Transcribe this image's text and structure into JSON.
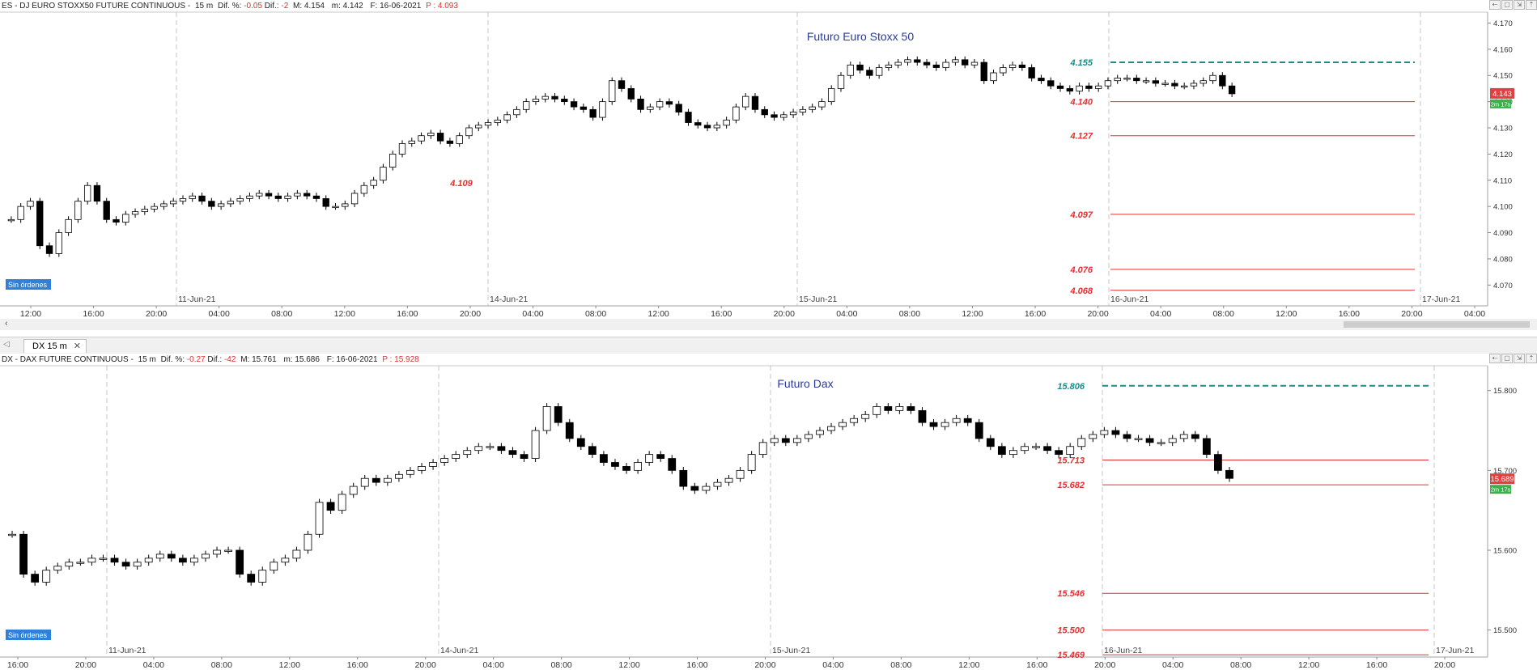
{
  "colors": {
    "support": "#e03030",
    "resistance": "#1f8a8a",
    "title": "#2a3a9a",
    "badge_bg": "#2f80d8",
    "axis_text": "#333333",
    "grid": "#d8d8d8",
    "last_badge": "#e04040",
    "timer_badge": "#3bb04b"
  },
  "top_panel": {
    "info": {
      "symbol": "ES - DJ EURO STOXX50 FUTURE CONTINUOUS -",
      "tf": "15 m",
      "dif_pct_label": "Dif. %:",
      "dif_pct": "-0.05",
      "dif_label": "Dif.:",
      "dif": "-2",
      "max": "M: 4.154",
      "min": "m: 4.142",
      "date": "F: 16-06-2021",
      "price": "P : 4.093"
    },
    "orders_badge": "Sin órdenes",
    "toolbar": [
      "⇠",
      "▢",
      "⇲",
      "⇡"
    ],
    "scroll_left": "‹"
  },
  "bottom_panel": {
    "info": {
      "symbol": "DX - DAX FUTURE CONTINUOUS -",
      "tf": "15 m",
      "dif_pct_label": "Dif. %:",
      "dif_pct": "-0.27",
      "dif_label": "Dif.:",
      "dif": "-42",
      "max": "M: 15.761",
      "min": "m: 15.686",
      "date": "F: 16-06-2021",
      "price": "P : 15.928"
    },
    "orders_badge": "Sin órdenes",
    "toolbar": [
      "⇠",
      "▢",
      "⇲",
      "⇡"
    ]
  },
  "tab": {
    "label": "DX 15 m",
    "close": "✕",
    "arrow": "◁"
  },
  "chart_data": [
    {
      "type": "candlestick",
      "title": "Futuro Euro Stoxx 50",
      "ylim": [
        4.067,
        4.172
      ],
      "y_ticks": [
        "4.170",
        "4.160",
        "4.150",
        "4.140",
        "4.130",
        "4.120",
        "4.110",
        "4.100",
        "4.090",
        "4.080",
        "4.070"
      ],
      "x_time_labels": [
        "12:00",
        "16:00",
        "20:00",
        "04:00",
        "08:00",
        "12:00",
        "16:00",
        "20:00",
        "04:00",
        "08:00",
        "12:00",
        "16:00",
        "20:00",
        "04:00",
        "08:00",
        "12:00",
        "16:00",
        "20:00",
        "04:00",
        "08:00",
        "12:00",
        "16:00",
        "20:00",
        "04:00"
      ],
      "date_labels": [
        "11-Jun-21",
        "14-Jun-21",
        "15-Jun-21",
        "16-Jun-21",
        "17-Jun-21"
      ],
      "last_price": "4.143",
      "timer": "2m 17s",
      "resistance": {
        "value": 4.155,
        "label": "4.155"
      },
      "supports": [
        {
          "value": 4.14,
          "label": "4.140"
        },
        {
          "value": 4.127,
          "label": "4.127"
        },
        {
          "value": 4.097,
          "label": "4.097"
        },
        {
          "value": 4.076,
          "label": "4.076"
        },
        {
          "value": 4.068,
          "label": "4.068"
        }
      ],
      "annotations": [
        {
          "value": 4.109,
          "label": "4.109"
        }
      ],
      "closes": [
        4.095,
        4.1,
        4.102,
        4.085,
        4.082,
        4.09,
        4.095,
        4.102,
        4.108,
        4.102,
        4.095,
        4.094,
        4.097,
        4.098,
        4.099,
        4.1,
        4.101,
        4.102,
        4.103,
        4.104,
        4.102,
        4.1,
        4.101,
        4.102,
        4.103,
        4.104,
        4.105,
        4.104,
        4.103,
        4.104,
        4.105,
        4.104,
        4.103,
        4.1,
        4.1,
        4.101,
        4.105,
        4.108,
        4.11,
        4.115,
        4.12,
        4.124,
        4.125,
        4.127,
        4.128,
        4.125,
        4.124,
        4.127,
        4.13,
        4.131,
        4.132,
        4.133,
        4.135,
        4.137,
        4.14,
        4.141,
        4.142,
        4.141,
        4.14,
        4.138,
        4.137,
        4.134,
        4.14,
        4.148,
        4.145,
        4.141,
        4.137,
        4.138,
        4.14,
        4.139,
        4.136,
        4.132,
        4.131,
        4.13,
        4.131,
        4.133,
        4.138,
        4.142,
        4.137,
        4.135,
        4.134,
        4.135,
        4.136,
        4.137,
        4.138,
        4.14,
        4.145,
        4.15,
        4.154,
        4.152,
        4.15,
        4.153,
        4.154,
        4.155,
        4.156,
        4.155,
        4.154,
        4.153,
        4.155,
        4.156,
        4.154,
        4.155,
        4.148,
        4.151,
        4.153,
        4.154,
        4.153,
        4.149,
        4.148,
        4.146,
        4.145,
        4.144,
        4.146,
        4.145,
        4.146,
        4.148,
        4.149,
        4.149,
        4.148,
        4.148,
        4.147,
        4.147,
        4.146,
        4.146,
        4.147,
        4.148,
        4.15,
        4.146,
        4.143
      ]
    },
    {
      "type": "candlestick",
      "title": "Futuro Dax",
      "ylim": [
        15.455,
        15.82
      ],
      "y_ticks": [
        "15.800",
        "15.700",
        "15.600",
        "15.500"
      ],
      "x_time_labels": [
        "16:00",
        "20:00",
        "04:00",
        "08:00",
        "12:00",
        "16:00",
        "20:00",
        "04:00",
        "08:00",
        "12:00",
        "16:00",
        "20:00",
        "04:00",
        "08:00",
        "12:00",
        "16:00",
        "20:00",
        "04:00",
        "08:00",
        "12:00",
        "16:00",
        "20:00"
      ],
      "date_labels": [
        "11-Jun-21",
        "14-Jun-21",
        "15-Jun-21",
        "16-Jun-21",
        "17-Jun-21"
      ],
      "last_price": "15.689",
      "timer": "2m 17s",
      "resistance": {
        "value": 15.806,
        "label": "15.806"
      },
      "supports": [
        {
          "value": 15.713,
          "label": "15.713"
        },
        {
          "value": 15.682,
          "label": "15.682"
        },
        {
          "value": 15.546,
          "label": "15.546"
        },
        {
          "value": 15.5,
          "label": "15.500"
        },
        {
          "value": 15.469,
          "label": "15.469"
        }
      ],
      "annotations": [],
      "closes": [
        15.62,
        15.57,
        15.56,
        15.575,
        15.58,
        15.585,
        15.585,
        15.59,
        15.59,
        15.585,
        15.58,
        15.585,
        15.59,
        15.595,
        15.59,
        15.585,
        15.59,
        15.595,
        15.6,
        15.6,
        15.57,
        15.56,
        15.575,
        15.585,
        15.59,
        15.6,
        15.62,
        15.66,
        15.65,
        15.67,
        15.68,
        15.69,
        15.685,
        15.69,
        15.695,
        15.7,
        15.705,
        15.71,
        15.715,
        15.72,
        15.725,
        15.73,
        15.73,
        15.725,
        15.72,
        15.715,
        15.75,
        15.78,
        15.76,
        15.74,
        15.73,
        15.72,
        15.71,
        15.705,
        15.7,
        15.71,
        15.72,
        15.715,
        15.7,
        15.68,
        15.675,
        15.68,
        15.685,
        15.69,
        15.7,
        15.72,
        15.735,
        15.74,
        15.735,
        15.74,
        15.745,
        15.75,
        15.755,
        15.76,
        15.765,
        15.77,
        15.78,
        15.775,
        15.78,
        15.775,
        15.76,
        15.755,
        15.76,
        15.765,
        15.76,
        15.74,
        15.73,
        15.72,
        15.725,
        15.73,
        15.73,
        15.725,
        15.72,
        15.73,
        15.74,
        15.745,
        15.75,
        15.745,
        15.74,
        15.74,
        15.735,
        15.735,
        15.74,
        15.745,
        15.74,
        15.72,
        15.7,
        15.69
      ]
    }
  ]
}
